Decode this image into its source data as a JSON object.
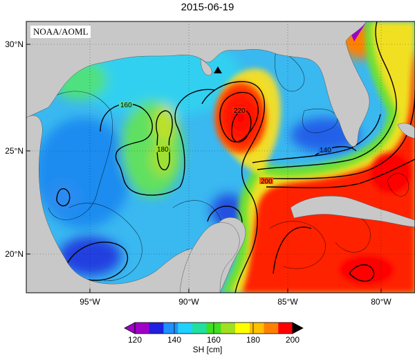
{
  "map": {
    "date": "2015-06-19",
    "credit": "NOAA/AOML",
    "marker_icon": "triangle-marker-icon",
    "lat_ticks": [
      "20°N",
      "25°N",
      "30°N"
    ],
    "lon_ticks": [
      "95°W",
      "90°W",
      "85°W",
      "80°W"
    ],
    "contour_labels": [
      "140",
      "160",
      "180",
      "200",
      "220"
    ]
  },
  "colorbar": {
    "label": "SH [cm]",
    "ticks": [
      "120",
      "140",
      "160",
      "180",
      "200"
    ],
    "colors": [
      "#a000c8",
      "#2020e0",
      "#2090ff",
      "#20d0ff",
      "#20e0a0",
      "#40e020",
      "#a0e020",
      "#ffff00",
      "#ffc000",
      "#ff8000",
      "#ff0000"
    ],
    "land_color": "#c8c8c8"
  }
}
